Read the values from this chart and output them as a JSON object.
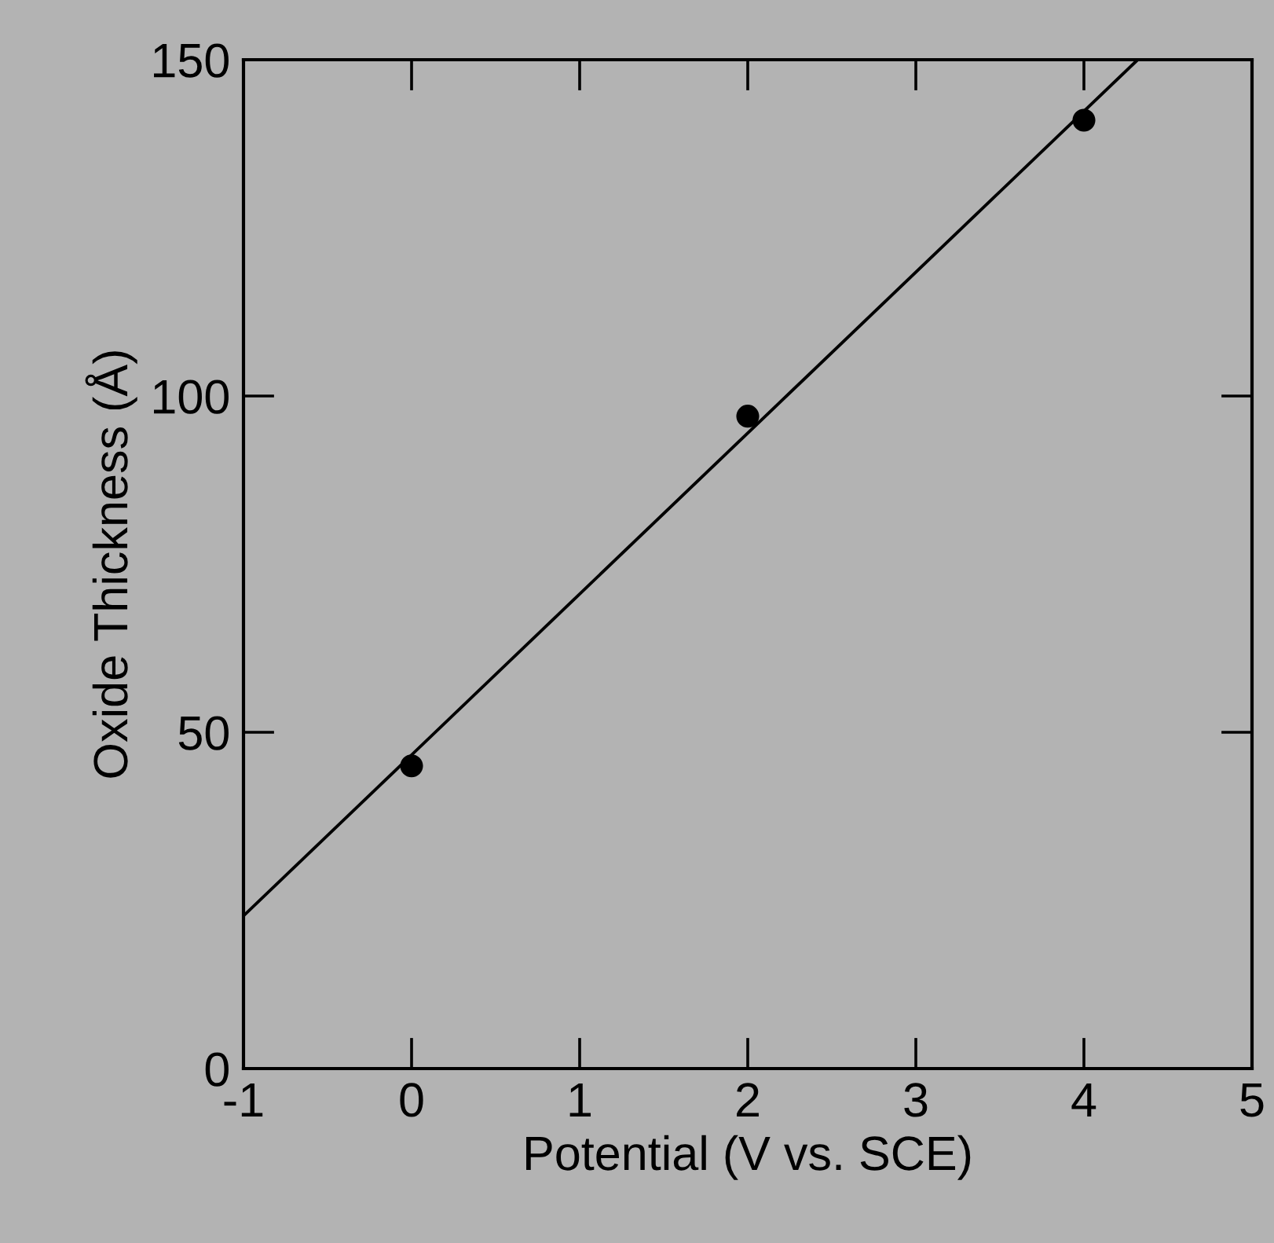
{
  "chart_data": {
    "type": "scatter",
    "xlabel": "Potential (V vs. SCE)",
    "ylabel": "Oxide Thickness (Å)",
    "xlim": [
      -1,
      5
    ],
    "xticks": [
      -1,
      0,
      1,
      2,
      3,
      4,
      5
    ],
    "ylim": [
      0,
      150
    ],
    "yticks": [
      0,
      50,
      100,
      150
    ],
    "grid": false,
    "series": [
      {
        "color": "#000000",
        "marker": "circle",
        "x": [
          0,
          2,
          4
        ],
        "values": [
          45,
          97,
          141
        ]
      },
      {
        "type": "line",
        "color": "#000000",
        "x": [
          -1,
          4.32
        ],
        "values": [
          22.7,
          150
        ]
      }
    ]
  }
}
